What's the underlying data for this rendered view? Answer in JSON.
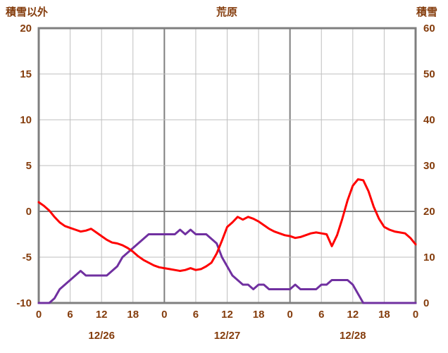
{
  "page": {
    "background": "#ffffff"
  },
  "chart_data": {
    "type": "line",
    "title": "荒原",
    "left_axis_title": "積雪以外",
    "right_axis_title": "積雪",
    "text_color": "#843C0C",
    "grid": true,
    "legend": "none",
    "xlim": [
      0,
      72
    ],
    "x_hours_step": 1,
    "left_ylim": [
      -10,
      20
    ],
    "right_ylim": [
      0,
      60
    ],
    "left_ticks": [
      20,
      15,
      10,
      5,
      0,
      -5,
      -10
    ],
    "right_ticks": [
      60,
      50,
      40,
      30,
      20,
      10,
      0
    ],
    "x_tick_hours": [
      0,
      6,
      12,
      18,
      24,
      30,
      36,
      42,
      48,
      54,
      60,
      66,
      72
    ],
    "x_tick_labels": [
      "0",
      "6",
      "12",
      "18",
      "0",
      "6",
      "12",
      "18",
      "0",
      "6",
      "12",
      "18",
      "0"
    ],
    "day_labels": [
      {
        "label": "12/26",
        "hour": 12
      },
      {
        "label": "12/27",
        "hour": 36
      },
      {
        "label": "12/28",
        "hour": 60
      }
    ],
    "series": [
      {
        "id": "purple",
        "axis": "right",
        "color": "#7030A0",
        "values": [
          0,
          0,
          0,
          1,
          3,
          4,
          5,
          6,
          7,
          6,
          6,
          6,
          6,
          6,
          7,
          8,
          10,
          11,
          12,
          13,
          14,
          15,
          15,
          15,
          15,
          15,
          15,
          16,
          15,
          16,
          15,
          15,
          15,
          14,
          13,
          10,
          8,
          6,
          5,
          4,
          4,
          3,
          4,
          4,
          3,
          3,
          3,
          3,
          3,
          4,
          3,
          3,
          3,
          3,
          4,
          4,
          5,
          5,
          5,
          5,
          4,
          2,
          0,
          0,
          0,
          0,
          0,
          0,
          0,
          0,
          0,
          0,
          0
        ]
      },
      {
        "id": "red",
        "axis": "left",
        "color": "#FF0000",
        "values": [
          1.0,
          0.6,
          0.1,
          -0.6,
          -1.2,
          -1.6,
          -1.8,
          -2.0,
          -2.2,
          -2.1,
          -1.9,
          -2.3,
          -2.7,
          -3.1,
          -3.4,
          -3.5,
          -3.7,
          -4.0,
          -4.4,
          -4.9,
          -5.3,
          -5.6,
          -5.9,
          -6.1,
          -6.2,
          -6.3,
          -6.4,
          -6.5,
          -6.4,
          -6.2,
          -6.4,
          -6.3,
          -6.0,
          -5.6,
          -4.6,
          -3.2,
          -1.7,
          -1.2,
          -0.6,
          -0.9,
          -0.6,
          -0.8,
          -1.1,
          -1.5,
          -1.9,
          -2.2,
          -2.4,
          -2.6,
          -2.7,
          -2.9,
          -2.8,
          -2.6,
          -2.4,
          -2.3,
          -2.4,
          -2.5,
          -3.8,
          -2.6,
          -0.8,
          1.2,
          2.8,
          3.5,
          3.4,
          2.2,
          0.5,
          -0.8,
          -1.7,
          -2.0,
          -2.2,
          -2.3,
          -2.4,
          -2.9,
          -3.6
        ]
      }
    ]
  }
}
